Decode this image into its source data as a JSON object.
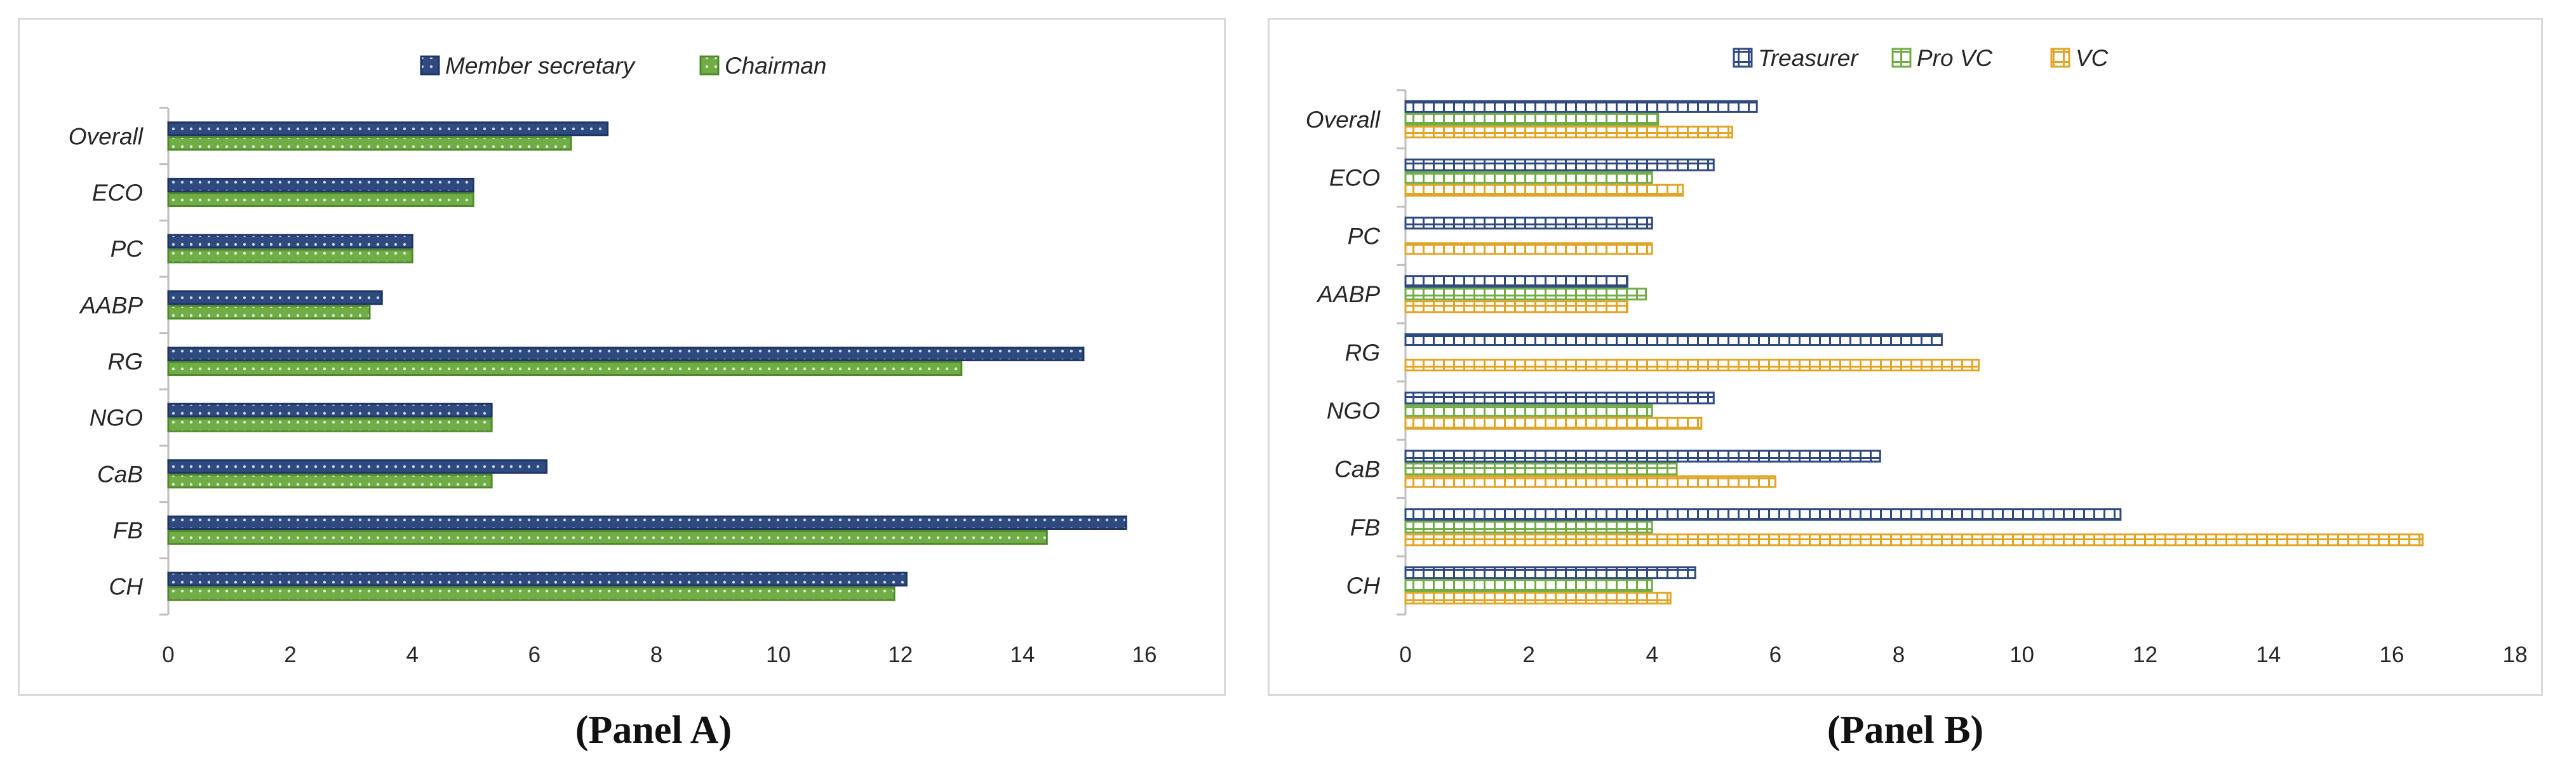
{
  "chart_data": [
    {
      "type": "bar",
      "orientation": "horizontal",
      "panel": "Panel A",
      "caption": "(Panel A)",
      "categories": [
        "Overall",
        "ECO",
        "PC",
        "AABP",
        "RG",
        "NGO",
        "CaB",
        "FB",
        "CH"
      ],
      "series": [
        {
          "name": "Member secretary",
          "color": "#2f4a7f",
          "values": [
            7.2,
            5.0,
            4.0,
            3.5,
            15.0,
            5.3,
            6.2,
            15.7,
            12.1
          ]
        },
        {
          "name": "Chairman",
          "color": "#70ad47",
          "values": [
            6.6,
            5.0,
            4.0,
            3.3,
            13.0,
            5.3,
            5.3,
            14.4,
            11.9
          ]
        }
      ],
      "xlim": [
        0,
        16
      ],
      "xticks": [
        "0",
        "2",
        "4",
        "6",
        "8",
        "10",
        "12",
        "14",
        "16"
      ],
      "legend": "top-center"
    },
    {
      "type": "bar",
      "orientation": "horizontal",
      "panel": "Panel B",
      "caption": "(Panel B)",
      "categories": [
        "Overall",
        "ECO",
        "PC",
        "AABP",
        "RG",
        "NGO",
        "CaB",
        "FB",
        "CH"
      ],
      "series": [
        {
          "name": "Treasurer",
          "color": "#2f4a7f",
          "values": [
            5.7,
            5.0,
            4.0,
            3.6,
            8.7,
            5.0,
            7.7,
            11.6,
            4.7
          ]
        },
        {
          "name": "Pro VC",
          "color": "#70ad47",
          "values": [
            4.1,
            4.0,
            0,
            3.9,
            0,
            4.0,
            4.4,
            4.0,
            4.0
          ]
        },
        {
          "name": "VC",
          "color": "#e0a526",
          "values": [
            5.3,
            4.5,
            4.0,
            3.6,
            9.3,
            4.8,
            6.0,
            16.5,
            4.3
          ]
        }
      ],
      "xlim": [
        0,
        18
      ],
      "xticks": [
        "0",
        "2",
        "4",
        "6",
        "8",
        "10",
        "12",
        "14",
        "16",
        "18"
      ],
      "legend": "top-center"
    }
  ]
}
